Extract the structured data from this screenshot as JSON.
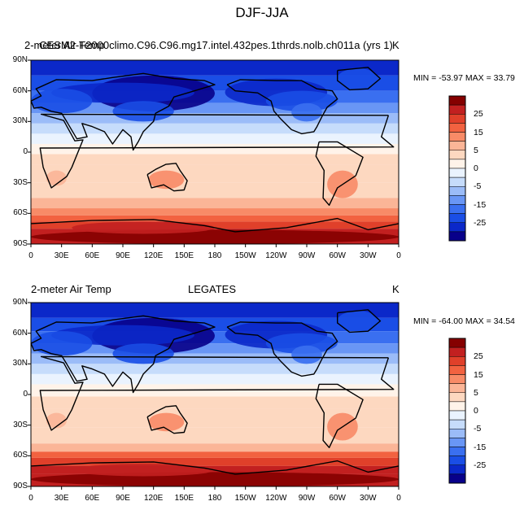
{
  "figure": {
    "title": "DJF-JJA"
  },
  "palette": [
    "#08008a",
    "#0b28c9",
    "#1a4ee6",
    "#3a6ff0",
    "#6996f5",
    "#9bbcf8",
    "#c6dcfb",
    "#eaf3fe",
    "#fff3e9",
    "#fdd8c0",
    "#fbb597",
    "#f88b67",
    "#f26240",
    "#e0402a",
    "#c22020",
    "#850000"
  ],
  "colorbar": {
    "labels": [
      "25",
      "15",
      "5",
      "0",
      "-5",
      "-15",
      "-25"
    ]
  },
  "panels": [
    {
      "id": "top",
      "left_text": "2-meter Air Temp",
      "center_text": "CESM2-F2000climo.C96.C96.mg17.intel.432pes.1thrds.nolb.ch011a (yrs 1)",
      "unit": "K",
      "minmax": "MIN = -53.97  MAX =  33.79",
      "lat_labels": [
        "90N",
        "60N",
        "30N",
        "0",
        "30S",
        "60S",
        "90S"
      ],
      "lon_labels": [
        "0",
        "30E",
        "60E",
        "90E",
        "120E",
        "150E",
        "180",
        "150W",
        "120W",
        "90W",
        "60W",
        "30W",
        "0"
      ]
    },
    {
      "id": "bottom",
      "left_text": "2-meter Air Temp",
      "center_text": "LEGATES",
      "unit": "K",
      "minmax": "MIN = -64.00  MAX =  34.54",
      "lat_labels": [
        "90N",
        "60N",
        "30N",
        "0",
        "30S",
        "60S",
        "90S"
      ],
      "lon_labels": [
        "0",
        "30E",
        "60E",
        "90E",
        "120E",
        "150E",
        "180",
        "150W",
        "120W",
        "90W",
        "60W",
        "30W",
        "0"
      ]
    }
  ]
}
